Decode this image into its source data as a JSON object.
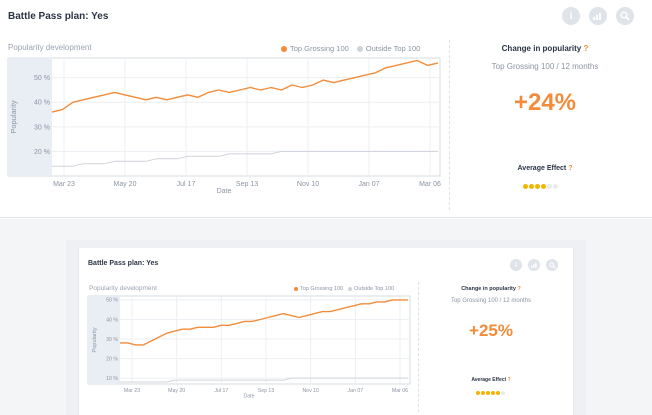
{
  "top": {
    "title": "Battle Pass plan: Yes",
    "icons": [
      "info-icon",
      "chart-icon",
      "search-icon"
    ],
    "popularity_label": "Popularity development",
    "legend": [
      {
        "label": "Top Grossing 100",
        "color": "#f28c3a"
      },
      {
        "label": "Outside Top 100",
        "color": "#cfd3da"
      }
    ],
    "change_title": "Change in popularity",
    "change_sub": "Top Grossing 100 / 12 months",
    "change_value": "+24%",
    "avg_title": "Average Effect",
    "avg_rating": 4,
    "avg_max": 6,
    "chart_data": {
      "type": "line",
      "ylabel": "Popularity",
      "xlabel": "Date",
      "yticks": [
        "20 %",
        "30 %",
        "40 %",
        "50 %"
      ],
      "ylim": [
        10,
        58
      ],
      "xticks": [
        "Mar 23",
        "May 20",
        "Jul 17",
        "Sep 13",
        "Nov 10",
        "Jan 07",
        "Mar 06"
      ],
      "series": [
        {
          "name": "Top Grossing 100",
          "color": "#f28c3a",
          "values": [
            36,
            37,
            40,
            41,
            42,
            43,
            44,
            43,
            42,
            41,
            42,
            41,
            42,
            43,
            42,
            44,
            45,
            44,
            45,
            46,
            45,
            46,
            45,
            47,
            46,
            47,
            49,
            48,
            49,
            50,
            51,
            52,
            54,
            55,
            56,
            57,
            55,
            56
          ]
        },
        {
          "name": "Outside Top 100",
          "color": "#cfd3da",
          "values": [
            14,
            14,
            14,
            15,
            15,
            15,
            16,
            16,
            16,
            16,
            17,
            17,
            17,
            18,
            18,
            18,
            18,
            19,
            19,
            19,
            19,
            19,
            20,
            20,
            20,
            20,
            20,
            20,
            20,
            20,
            20,
            20,
            20,
            20,
            20,
            20,
            20,
            20
          ]
        }
      ]
    }
  },
  "bottom": {
    "title": "Battle Pass plan: Yes",
    "icons": [
      "info-icon",
      "chart-icon",
      "search-icon"
    ],
    "popularity_label": "Popularity development",
    "legend": [
      {
        "label": "Top Grossing 100",
        "color": "#f28c3a"
      },
      {
        "label": "Outside Top 100",
        "color": "#cfd3da"
      }
    ],
    "change_title": "Change in popularity",
    "change_sub": "Top Grossing 100 / 12 months",
    "change_value": "+25%",
    "avg_title": "Average Effect",
    "avg_rating": 5,
    "avg_max": 6,
    "chart_data": {
      "type": "line",
      "ylabel": "Popularity",
      "xlabel": "Date",
      "yticks": [
        "10 %",
        "20 %",
        "30 %",
        "40 %",
        "50 %"
      ],
      "ylim": [
        7,
        52
      ],
      "xticks": [
        "Mar 23",
        "May 20",
        "Jul 17",
        "Sep 13",
        "Nov 10",
        "Jan 07",
        "Mar 06"
      ],
      "series": [
        {
          "name": "Top Grossing 100",
          "color": "#f28c3a",
          "values": [
            28,
            28,
            27,
            27,
            29,
            31,
            33,
            34,
            35,
            35,
            36,
            36,
            36,
            37,
            37,
            38,
            39,
            39,
            40,
            41,
            42,
            43,
            42,
            41,
            42,
            43,
            44,
            44,
            45,
            46,
            47,
            48,
            48,
            49,
            49,
            50,
            50,
            50
          ]
        },
        {
          "name": "Outside Top 100",
          "color": "#cfd3da",
          "values": [
            8,
            8,
            8,
            8,
            8,
            8,
            8,
            9,
            9,
            9,
            9,
            9,
            9,
            9,
            9,
            9,
            9,
            9,
            9,
            9,
            9,
            9,
            10,
            10,
            10,
            10,
            10,
            10,
            10,
            10,
            10,
            10,
            10,
            10,
            10,
            10,
            10,
            10
          ]
        }
      ]
    }
  }
}
